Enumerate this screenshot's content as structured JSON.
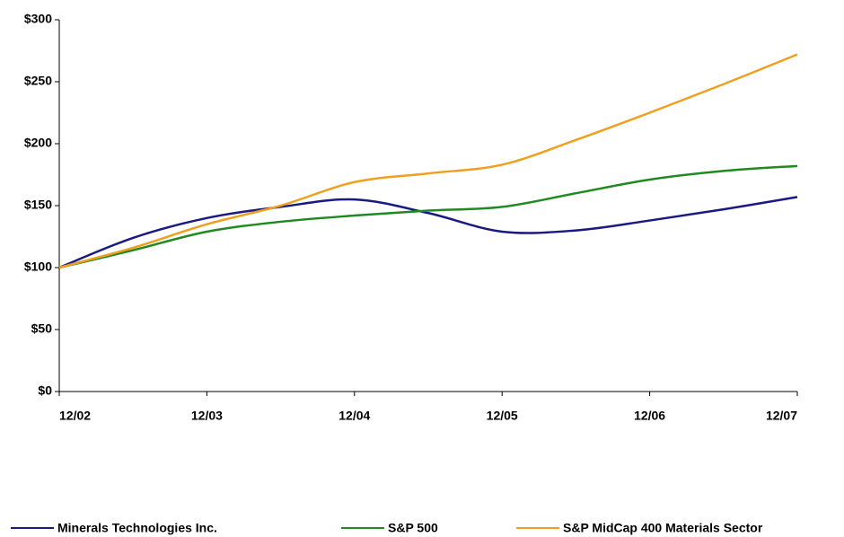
{
  "chart_data": {
    "type": "line",
    "categories": [
      "12/02",
      null,
      "12/03",
      null,
      "12/04",
      null,
      "12/05",
      null,
      "12/06",
      null,
      "12/07"
    ],
    "series": [
      {
        "name": "Minerals Technologies Inc.",
        "color": "#1a1a80",
        "values": [
          100,
          124,
          140,
          149,
          155,
          144,
          129,
          130,
          138,
          147,
          157
        ]
      },
      {
        "name": "S&P 500",
        "color": "#1f8a1f",
        "values": [
          100,
          114,
          129,
          137,
          142,
          146,
          149,
          160,
          171,
          178,
          182
        ]
      },
      {
        "name": "S&P MidCap 400 Materials Sector",
        "color": "#f0a020",
        "values": [
          100,
          116,
          135,
          150,
          169,
          176,
          183,
          203,
          225,
          248,
          272
        ]
      }
    ],
    "ylim": [
      0,
      300
    ],
    "yticks": [
      {
        "value": 0,
        "label": "$0"
      },
      {
        "value": 50,
        "label": "$50"
      },
      {
        "value": 100,
        "label": "$100"
      },
      {
        "value": 150,
        "label": "$150"
      },
      {
        "value": 200,
        "label": "$200"
      },
      {
        "value": 250,
        "label": "$250"
      },
      {
        "value": 300,
        "label": "$300"
      }
    ],
    "legend": "bottom"
  }
}
